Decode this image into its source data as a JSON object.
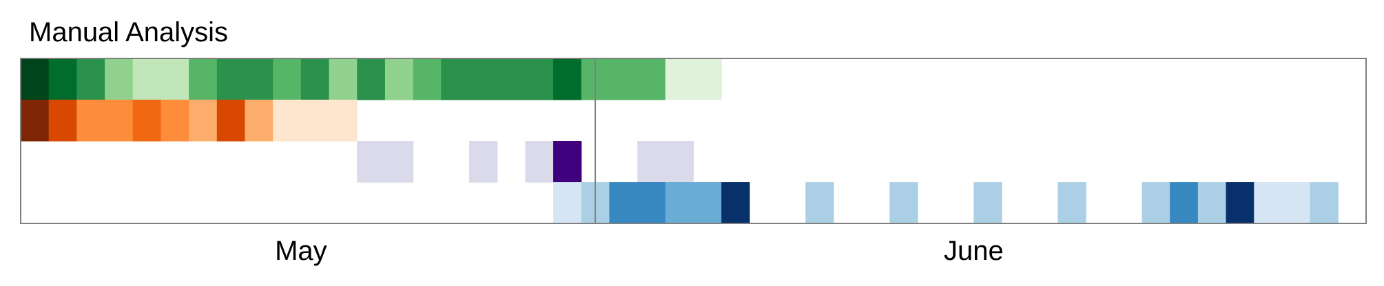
{
  "chart_data": {
    "type": "heatmap",
    "title": "Manual Analysis",
    "xlabel": "",
    "ylabel": "",
    "x_unit": "day",
    "x_range": [
      0,
      48
    ],
    "divider_at": 20.5,
    "months": [
      {
        "label": "May",
        "center": 10
      },
      {
        "label": "June",
        "center": 34
      }
    ],
    "grid": false,
    "legend": "none",
    "rows": [
      {
        "colormap": "Greens",
        "cells": [
          {
            "x": 0,
            "w": 1,
            "color": "#00441b"
          },
          {
            "x": 1,
            "w": 1,
            "color": "#006d2c"
          },
          {
            "x": 2,
            "w": 1,
            "color": "#2b924b"
          },
          {
            "x": 3,
            "w": 1,
            "color": "#90d18d"
          },
          {
            "x": 4,
            "w": 2,
            "color": "#c0e6b9"
          },
          {
            "x": 6,
            "w": 1,
            "color": "#56b567"
          },
          {
            "x": 7,
            "w": 2,
            "color": "#2b924b"
          },
          {
            "x": 9,
            "w": 1,
            "color": "#56b567"
          },
          {
            "x": 10,
            "w": 1,
            "color": "#2b924b"
          },
          {
            "x": 11,
            "w": 1,
            "color": "#90d18d"
          },
          {
            "x": 12,
            "w": 1,
            "color": "#2b924b"
          },
          {
            "x": 13,
            "w": 1,
            "color": "#90d18d"
          },
          {
            "x": 14,
            "w": 1,
            "color": "#56b567"
          },
          {
            "x": 15,
            "w": 4,
            "color": "#2b924b"
          },
          {
            "x": 19,
            "w": 1,
            "color": "#006d2c"
          },
          {
            "x": 20,
            "w": 3,
            "color": "#56b567"
          },
          {
            "x": 23,
            "w": 2,
            "color": "#e0f2db"
          }
        ]
      },
      {
        "colormap": "Oranges",
        "cells": [
          {
            "x": 0,
            "w": 1,
            "color": "#7f2704"
          },
          {
            "x": 1,
            "w": 1,
            "color": "#d84801"
          },
          {
            "x": 2,
            "w": 2,
            "color": "#fd8c3b"
          },
          {
            "x": 4,
            "w": 1,
            "color": "#f16813"
          },
          {
            "x": 5,
            "w": 1,
            "color": "#fd8c3b"
          },
          {
            "x": 6,
            "w": 1,
            "color": "#fdad6b"
          },
          {
            "x": 7,
            "w": 1,
            "color": "#d84801"
          },
          {
            "x": 8,
            "w": 1,
            "color": "#fdad6b"
          },
          {
            "x": 9,
            "w": 3,
            "color": "#fee6ce"
          }
        ]
      },
      {
        "colormap": "Purples",
        "cells": [
          {
            "x": 12,
            "w": 2,
            "color": "#dadaeb"
          },
          {
            "x": 16,
            "w": 1,
            "color": "#dadaeb"
          },
          {
            "x": 18,
            "w": 1,
            "color": "#dadaeb"
          },
          {
            "x": 19,
            "w": 1,
            "color": "#3f007d"
          },
          {
            "x": 22,
            "w": 2,
            "color": "#dadaeb"
          }
        ]
      },
      {
        "colormap": "Blues",
        "cells": [
          {
            "x": 19,
            "w": 1,
            "color": "#d5e5f4"
          },
          {
            "x": 20,
            "w": 1,
            "color": "#abd0e6"
          },
          {
            "x": 21,
            "w": 2,
            "color": "#3787c0"
          },
          {
            "x": 23,
            "w": 2,
            "color": "#69add5"
          },
          {
            "x": 25,
            "w": 1,
            "color": "#08306b"
          },
          {
            "x": 28,
            "w": 1,
            "color": "#abd0e6"
          },
          {
            "x": 31,
            "w": 1,
            "color": "#abd0e6"
          },
          {
            "x": 34,
            "w": 1,
            "color": "#abd0e6"
          },
          {
            "x": 37,
            "w": 1,
            "color": "#abd0e6"
          },
          {
            "x": 40,
            "w": 1,
            "color": "#abd0e6"
          },
          {
            "x": 41,
            "w": 1,
            "color": "#3787c0"
          },
          {
            "x": 42,
            "w": 1,
            "color": "#abd0e6"
          },
          {
            "x": 43,
            "w": 1,
            "color": "#08306b"
          },
          {
            "x": 44,
            "w": 2,
            "color": "#d5e5f4"
          },
          {
            "x": 46,
            "w": 1,
            "color": "#abd0e6"
          }
        ]
      }
    ],
    "frame_color": "#7f7f7f",
    "divider_color": "#7f7f7f"
  }
}
